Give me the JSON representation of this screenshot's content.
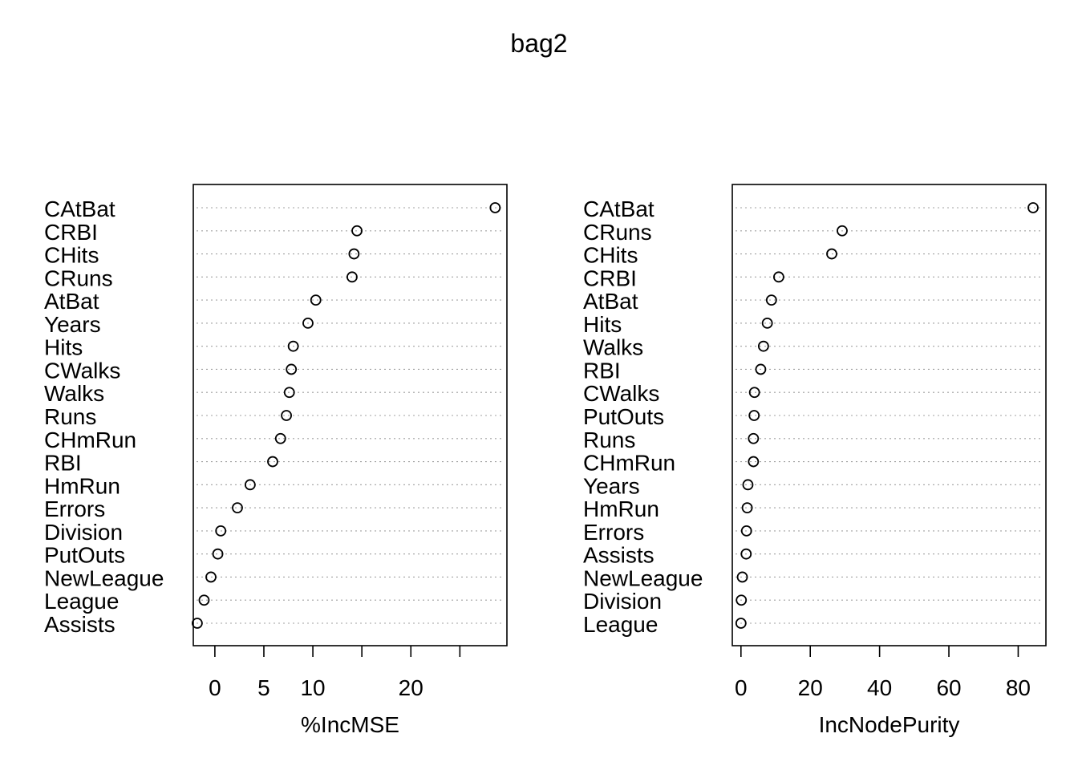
{
  "title": "bag2",
  "chart_data": [
    {
      "type": "scatter",
      "subtype": "dotchart",
      "xlabel": "%IncMSE",
      "ylabel": "",
      "xlim": [
        -2.2,
        29.8
      ],
      "xticks": [
        0,
        5,
        10,
        15,
        20,
        25
      ],
      "xtick_labels": [
        "0",
        "5",
        "10",
        "",
        "20",
        ""
      ],
      "grid": "dotted horizontal guide lines",
      "categories": [
        "CAtBat",
        "CRBI",
        "CHits",
        "CRuns",
        "AtBat",
        "Years",
        "Hits",
        "CWalks",
        "Walks",
        "Runs",
        "CHmRun",
        "RBI",
        "HmRun",
        "Errors",
        "Division",
        "PutOuts",
        "NewLeague",
        "League",
        "Assists"
      ],
      "values": [
        28.6,
        14.5,
        14.2,
        14.0,
        10.3,
        9.5,
        8.0,
        7.8,
        7.6,
        7.3,
        6.7,
        5.9,
        3.6,
        2.3,
        0.6,
        0.3,
        -0.4,
        -1.1,
        -1.8
      ]
    },
    {
      "type": "scatter",
      "subtype": "dotchart",
      "xlabel": "IncNodePurity",
      "ylabel": "",
      "xlim": [
        -2.5,
        88.0
      ],
      "xticks": [
        0,
        20,
        40,
        60,
        80
      ],
      "xtick_labels": [
        "0",
        "20",
        "40",
        "60",
        "80"
      ],
      "grid": "dotted horizontal guide lines",
      "categories": [
        "CAtBat",
        "CRuns",
        "CHits",
        "CRBI",
        "AtBat",
        "Hits",
        "Walks",
        "RBI",
        "CWalks",
        "PutOuts",
        "Runs",
        "CHmRun",
        "Years",
        "HmRun",
        "Errors",
        "Assists",
        "NewLeague",
        "Division",
        "League"
      ],
      "values": [
        84.3,
        29.2,
        26.2,
        10.9,
        8.8,
        7.6,
        6.5,
        5.7,
        3.9,
        3.8,
        3.6,
        3.6,
        2.0,
        1.8,
        1.6,
        1.5,
        0.4,
        0.1,
        0.0
      ]
    }
  ]
}
